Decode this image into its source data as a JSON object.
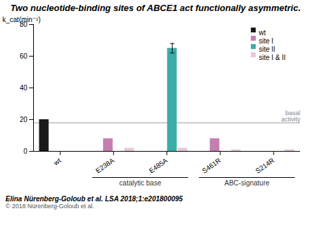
{
  "chart_data": {
    "type": "bar",
    "title": "Two nucleotide-binding sites of ABCE1 act functionally asymmetric.",
    "categories": [
      "wt",
      "E238A",
      "E485A",
      "S461R",
      "S214R"
    ],
    "series": [
      {
        "name": "wt",
        "color": "#1a1a1a",
        "values": [
          20,
          0,
          0,
          0,
          0
        ]
      },
      {
        "name": "site I",
        "color": "#c47fb0",
        "values": [
          0,
          8,
          0,
          8,
          0
        ]
      },
      {
        "name": "site II",
        "color": "#3aada8",
        "values": [
          0,
          0,
          65,
          0,
          0
        ],
        "errors": [
          null,
          null,
          3,
          null,
          null
        ]
      },
      {
        "name": "site I & II",
        "color": "#e8c8dc",
        "values": [
          0,
          2,
          2,
          1,
          1
        ]
      }
    ],
    "ylabel": "k_cat(min⁻¹)",
    "ylim": [
      0,
      80
    ],
    "yticks": [
      0,
      20,
      40,
      60,
      80
    ],
    "grid": false,
    "legend": "upper right",
    "reference_line": {
      "value": 18,
      "label": "basal\nactivity"
    },
    "category_groups": [
      {
        "label": "catalytic base",
        "categories": [
          "E238A",
          "E485A"
        ]
      },
      {
        "label": "ABC-signature",
        "categories": [
          "S461R",
          "S214R"
        ]
      }
    ],
    "annotations": [
      "Elina Nürenberg-Goloub et al. LSA 2018;1:e201800095",
      "© 2018 Nürenberg-Goloub et al."
    ]
  }
}
